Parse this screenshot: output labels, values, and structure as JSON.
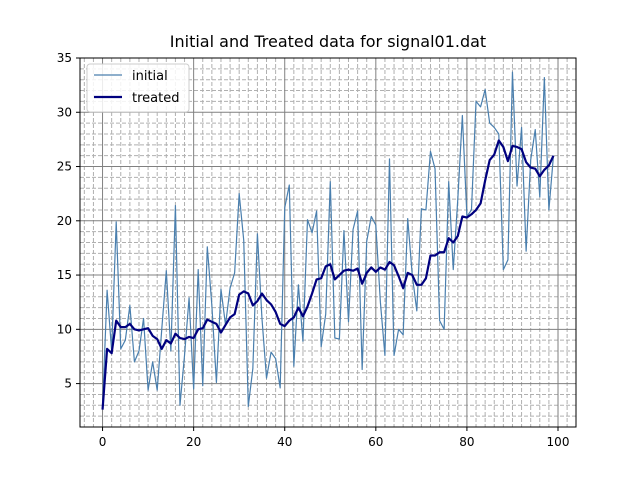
{
  "chart_data": {
    "type": "line",
    "title": "Initial and Treated data for signal01.dat",
    "xlabel": "",
    "ylabel": "",
    "xlim": [
      -4.95,
      103.95
    ],
    "ylim": [
      1.0,
      35.0
    ],
    "x_ticks": [
      0,
      20,
      40,
      60,
      80,
      100
    ],
    "y_ticks": [
      5,
      10,
      15,
      20,
      25,
      30,
      35
    ],
    "grid": {
      "major": true,
      "minor": true
    },
    "legend_position": "top-left",
    "x": [
      0,
      1,
      2,
      3,
      4,
      5,
      6,
      7,
      8,
      9,
      10,
      11,
      12,
      13,
      14,
      15,
      16,
      17,
      18,
      19,
      20,
      21,
      22,
      23,
      24,
      25,
      26,
      27,
      28,
      29,
      30,
      31,
      32,
      33,
      34,
      35,
      36,
      37,
      38,
      39,
      40,
      41,
      42,
      43,
      44,
      45,
      46,
      47,
      48,
      49,
      50,
      51,
      52,
      53,
      54,
      55,
      56,
      57,
      58,
      59,
      60,
      61,
      62,
      63,
      64,
      65,
      66,
      67,
      68,
      69,
      70,
      71,
      72,
      73,
      74,
      75,
      76,
      77,
      78,
      79,
      80,
      81,
      82,
      83,
      84,
      85,
      86,
      87,
      88,
      89,
      90,
      91,
      92,
      93,
      94,
      95,
      96,
      97,
      98,
      99
    ],
    "series": [
      {
        "name": "initial",
        "color": "#4a7fae",
        "width": 1.2,
        "values": [
          2.8,
          13.6,
          8.0,
          19.9,
          8.2,
          9.0,
          12.2,
          7.0,
          8.0,
          11.0,
          4.4,
          7.0,
          4.4,
          10.0,
          15.4,
          8.0,
          21.4,
          3.0,
          7.6,
          12.9,
          4.5,
          15.5,
          4.8,
          17.6,
          12.2,
          5.1,
          13.7,
          10.4,
          13.8,
          15.2,
          22.5,
          18.2,
          2.9,
          6.4,
          18.8,
          11.0,
          5.5,
          7.9,
          7.3,
          4.6,
          21.2,
          23.3,
          6.6,
          14.1,
          8.9,
          20.1,
          18.9,
          20.9,
          8.4,
          11.4,
          23.6,
          9.2,
          9.1,
          19.1,
          10.7,
          19.2,
          20.9,
          6.3,
          18.1,
          20.4,
          19.6,
          12.5,
          7.6,
          25.7,
          7.6,
          10.0,
          9.5,
          20.2,
          15.0,
          11.7,
          21.1,
          21.0,
          26.4,
          24.8,
          10.8,
          10.0,
          23.6,
          15.5,
          22.0,
          29.7,
          20.4,
          21.0,
          31.0,
          30.5,
          32.1,
          29.0,
          28.6,
          28.0,
          15.5,
          16.4,
          33.7,
          23.2,
          28.6,
          17.2,
          25.6,
          28.4,
          22.2,
          33.2,
          21.0,
          26.0
        ]
      },
      {
        "name": "treated",
        "color": "#00007f",
        "width": 2.2,
        "values": [
          2.6,
          8.2,
          7.8,
          10.8,
          10.2,
          10.2,
          10.5,
          10.0,
          9.9,
          10.0,
          10.1,
          9.4,
          9.1,
          8.2,
          9.0,
          8.7,
          9.6,
          9.2,
          9.1,
          9.3,
          9.2,
          10.0,
          10.1,
          10.9,
          10.7,
          10.5,
          9.7,
          10.4,
          11.1,
          11.4,
          13.2,
          13.5,
          13.3,
          12.2,
          12.6,
          13.3,
          12.7,
          12.3,
          11.6,
          10.5,
          10.3,
          10.8,
          11.1,
          12.0,
          11.2,
          12.1,
          13.3,
          14.6,
          14.7,
          15.8,
          16.0,
          14.6,
          15.0,
          15.4,
          15.5,
          15.4,
          15.6,
          14.2,
          15.2,
          15.7,
          15.3,
          15.7,
          15.5,
          16.2,
          15.9,
          14.9,
          13.8,
          15.2,
          15.0,
          14.1,
          14.1,
          14.7,
          16.8,
          16.8,
          17.1,
          17.1,
          18.4,
          18.0,
          18.6,
          20.4,
          20.3,
          20.6,
          21.0,
          21.6,
          23.7,
          25.6,
          26.1,
          27.4,
          26.8,
          25.5,
          26.9,
          26.8,
          26.6,
          25.4,
          24.9,
          24.8,
          24.1,
          24.7,
          25.1,
          26.0
        ]
      }
    ]
  }
}
